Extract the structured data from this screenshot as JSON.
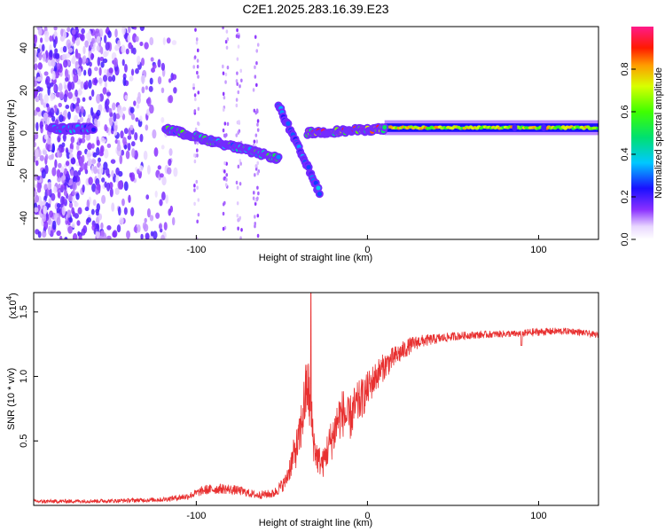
{
  "figure_title": "C2E1.2025.283.16.39.E23",
  "chart_data": [
    {
      "type": "heatmap",
      "title": "C2E1.2025.283.16.39.E23",
      "xlabel": "Height of straight line (km)",
      "ylabel": "Frequency (Hz)",
      "xlim": [
        -195,
        135
      ],
      "ylim": [
        -50,
        50
      ],
      "xticks": [
        -100,
        0,
        100
      ],
      "xtick_labels": [
        "-100",
        "0",
        "100"
      ],
      "yticks": [
        -40,
        -20,
        0,
        20,
        40
      ],
      "ytick_labels": [
        "-40",
        "-20",
        "0",
        "20",
        "40"
      ],
      "colorbar": {
        "label": "Normalized spectral amplitude",
        "range": [
          0,
          1
        ],
        "ticks": [
          0.0,
          0.2,
          0.4,
          0.6,
          0.8
        ],
        "tick_labels": [
          "0.0",
          "0.2",
          "0.4",
          "0.6",
          "0.8"
        ],
        "colormap": "rainbow: white-violet-blue-cyan-green-yellow-red-magenta"
      },
      "features": [
        {
          "name": "broadband noise region",
          "x_range": [
            -195,
            -112
          ],
          "freq_range": [
            -50,
            50
          ],
          "amplitude": 0.15
        },
        {
          "name": "carrier segment",
          "x_range": [
            -185,
            -160
          ],
          "freq_center": 2,
          "amplitude": 0.35
        },
        {
          "name": "drifting carrier",
          "x_from": -118,
          "x_to": -52,
          "freq_from": 2,
          "freq_to": -12,
          "amplitude": 0.5
        },
        {
          "name": "descending branch",
          "x_from": -52,
          "x_to": -28,
          "freq_from": 13,
          "freq_to": -28,
          "amplitude": 0.3
        },
        {
          "name": "converging carrier",
          "x_from": -35,
          "x_to": 10,
          "freq_from": 0,
          "freq_to": 2,
          "amplitude": 0.8
        },
        {
          "name": "steady carrier",
          "x_from": 10,
          "x_to": 135,
          "freq_center": 2.5,
          "amplitude": 0.7
        }
      ]
    },
    {
      "type": "line",
      "xlabel": "Height of straight line (km)",
      "ylabel": "SNR (10 * v/v)",
      "y_multiplier_label": "(x10",
      "y_multiplier_exp": "4",
      "xlim": [
        -195,
        135
      ],
      "ylim": [
        0,
        16500
      ],
      "xticks": [
        -100,
        0,
        100
      ],
      "xtick_labels": [
        "-100",
        "0",
        "100"
      ],
      "yticks": [
        5000,
        10000,
        15000
      ],
      "ytick_labels": [
        "0.5",
        "1.0",
        "1.5"
      ],
      "series": [
        {
          "name": "SNR",
          "color": "#e83030",
          "x": [
            -195,
            -150,
            -120,
            -105,
            -95,
            -85,
            -75,
            -65,
            -55,
            -48,
            -44,
            -40,
            -37,
            -35,
            -33,
            -31,
            -29,
            -26,
            -23,
            -20,
            -17,
            -14,
            -11,
            -8,
            -5,
            -2,
            0,
            3,
            6,
            10,
            15,
            20,
            25,
            30,
            40,
            50,
            60,
            70,
            80,
            90,
            95,
            100,
            110,
            120,
            135
          ],
          "y": [
            300,
            350,
            450,
            700,
            1200,
            1300,
            1150,
            800,
            900,
            1800,
            3500,
            5000,
            7800,
            9500,
            7000,
            4500,
            3600,
            3200,
            4500,
            5400,
            6800,
            7200,
            6500,
            7400,
            8000,
            8500,
            9000,
            9600,
            10200,
            10800,
            11400,
            11900,
            12400,
            12700,
            12900,
            13100,
            13200,
            13250,
            13300,
            13300,
            13400,
            13450,
            13500,
            13500,
            13200
          ],
          "noise": [
            150,
            150,
            180,
            260,
            380,
            400,
            360,
            300,
            350,
            600,
            1200,
            1700,
            2300,
            2700,
            2200,
            1500,
            1200,
            1100,
            1500,
            1700,
            1900,
            1900,
            1800,
            1800,
            1700,
            1500,
            1400,
            1300,
            1200,
            1050,
            900,
            780,
            650,
            520,
            400,
            330,
            300,
            280,
            270,
            270,
            330,
            300,
            280,
            250,
            230
          ]
        }
      ],
      "spike": {
        "x": -33,
        "y": 16500
      }
    }
  ]
}
